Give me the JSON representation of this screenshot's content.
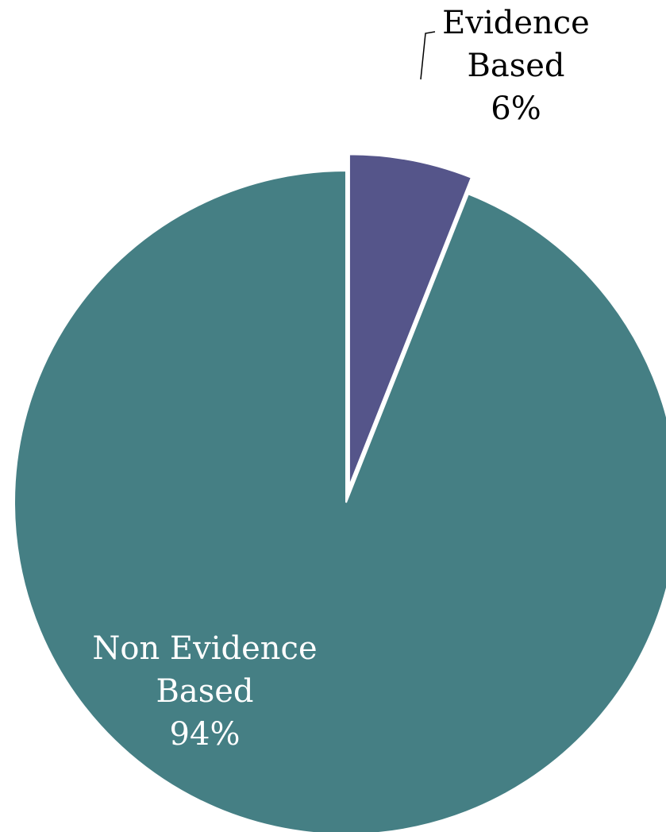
{
  "chart_data": {
    "type": "pie",
    "title": "",
    "slices": [
      {
        "label_lines": [
          "Evidence",
          "Based"
        ],
        "percent_label": "6%",
        "value": 6,
        "color": "#55558A",
        "label_color": "#000000",
        "exploded": true,
        "leader_line": true
      },
      {
        "label_lines": [
          "Non Evidence",
          "Based"
        ],
        "percent_label": "94%",
        "value": 94,
        "color": "#457F84",
        "label_color": "#FFFFFF",
        "exploded": false,
        "leader_line": false
      }
    ],
    "legend": "none"
  }
}
